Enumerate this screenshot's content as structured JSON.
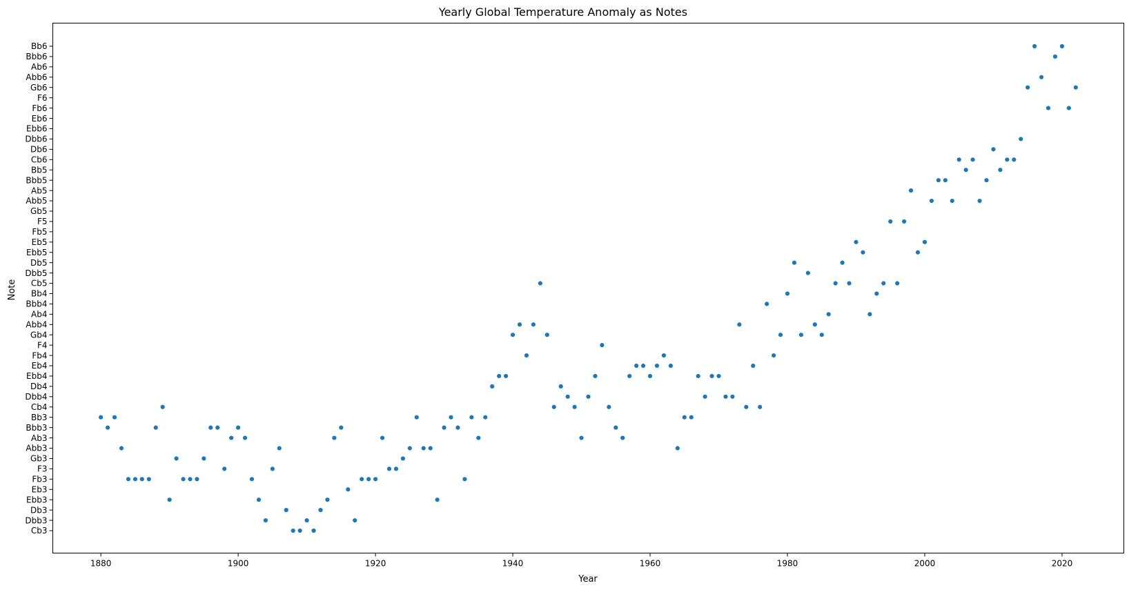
{
  "chart_data": {
    "type": "scatter",
    "title": "Yearly Global Temperature Anomaly as Notes",
    "xlabel": "Year",
    "ylabel": "Note",
    "xlim": [
      1873,
      2029
    ],
    "x_ticks": [
      1880,
      1900,
      1920,
      1940,
      1960,
      1980,
      2000,
      2020
    ],
    "y_categories": [
      "Cb3",
      "Dbb3",
      "Db3",
      "Ebb3",
      "Eb3",
      "Fb3",
      "F3",
      "Gb3",
      "Abb3",
      "Ab3",
      "Bbb3",
      "Bb3",
      "Cb4",
      "Dbb4",
      "Db4",
      "Ebb4",
      "Eb4",
      "Fb4",
      "F4",
      "Gb4",
      "Abb4",
      "Ab4",
      "Bbb4",
      "Bb4",
      "Cb5",
      "Dbb5",
      "Db5",
      "Ebb5",
      "Eb5",
      "Fb5",
      "F5",
      "Gb5",
      "Abb5",
      "Ab5",
      "Bbb5",
      "Bb5",
      "Cb6",
      "Db6",
      "Dbb6",
      "Ebb6",
      "Eb6",
      "Fb6",
      "F6",
      "Gb6",
      "Abb6",
      "Ab6",
      "Bbb6",
      "Bb6"
    ],
    "grid": false,
    "marker_color": "#1f77b4",
    "points": [
      [
        1880,
        "Bb3"
      ],
      [
        1881,
        "Bbb3"
      ],
      [
        1882,
        "Bb3"
      ],
      [
        1883,
        "Abb3"
      ],
      [
        1884,
        "Fb3"
      ],
      [
        1885,
        "Fb3"
      ],
      [
        1886,
        "Fb3"
      ],
      [
        1887,
        "Fb3"
      ],
      [
        1888,
        "Bbb3"
      ],
      [
        1889,
        "Cb4"
      ],
      [
        1890,
        "Ebb3"
      ],
      [
        1891,
        "Gb3"
      ],
      [
        1892,
        "Fb3"
      ],
      [
        1893,
        "Fb3"
      ],
      [
        1894,
        "Fb3"
      ],
      [
        1895,
        "Gb3"
      ],
      [
        1896,
        "Bbb3"
      ],
      [
        1897,
        "Bbb3"
      ],
      [
        1898,
        "F3"
      ],
      [
        1899,
        "Ab3"
      ],
      [
        1900,
        "Bbb3"
      ],
      [
        1901,
        "Ab3"
      ],
      [
        1902,
        "Fb3"
      ],
      [
        1903,
        "Ebb3"
      ],
      [
        1904,
        "Dbb3"
      ],
      [
        1905,
        "F3"
      ],
      [
        1906,
        "Abb3"
      ],
      [
        1907,
        "Db3"
      ],
      [
        1908,
        "Cb3"
      ],
      [
        1909,
        "Cb3"
      ],
      [
        1910,
        "Dbb3"
      ],
      [
        1911,
        "Cb3"
      ],
      [
        1912,
        "Db3"
      ],
      [
        1913,
        "Ebb3"
      ],
      [
        1914,
        "Ab3"
      ],
      [
        1915,
        "Bbb3"
      ],
      [
        1916,
        "Eb3"
      ],
      [
        1917,
        "Dbb3"
      ],
      [
        1918,
        "Fb3"
      ],
      [
        1919,
        "Fb3"
      ],
      [
        1920,
        "Fb3"
      ],
      [
        1921,
        "Ab3"
      ],
      [
        1922,
        "F3"
      ],
      [
        1923,
        "F3"
      ],
      [
        1924,
        "Gb3"
      ],
      [
        1925,
        "Abb3"
      ],
      [
        1926,
        "Bb3"
      ],
      [
        1927,
        "Abb3"
      ],
      [
        1928,
        "Abb3"
      ],
      [
        1929,
        "Ebb3"
      ],
      [
        1930,
        "Bbb3"
      ],
      [
        1931,
        "Bb3"
      ],
      [
        1932,
        "Bbb3"
      ],
      [
        1933,
        "Fb3"
      ],
      [
        1934,
        "Bb3"
      ],
      [
        1935,
        "Ab3"
      ],
      [
        1936,
        "Bb3"
      ],
      [
        1937,
        "Db4"
      ],
      [
        1938,
        "Ebb4"
      ],
      [
        1939,
        "Ebb4"
      ],
      [
        1940,
        "Gb4"
      ],
      [
        1941,
        "Abb4"
      ],
      [
        1942,
        "Fb4"
      ],
      [
        1943,
        "Abb4"
      ],
      [
        1944,
        "Cb5"
      ],
      [
        1945,
        "Gb4"
      ],
      [
        1946,
        "Cb4"
      ],
      [
        1947,
        "Db4"
      ],
      [
        1948,
        "Dbb4"
      ],
      [
        1949,
        "Cb4"
      ],
      [
        1950,
        "Ab3"
      ],
      [
        1951,
        "Dbb4"
      ],
      [
        1952,
        "Ebb4"
      ],
      [
        1953,
        "F4"
      ],
      [
        1954,
        "Cb4"
      ],
      [
        1955,
        "Bbb3"
      ],
      [
        1956,
        "Ab3"
      ],
      [
        1957,
        "Ebb4"
      ],
      [
        1958,
        "Eb4"
      ],
      [
        1959,
        "Eb4"
      ],
      [
        1960,
        "Ebb4"
      ],
      [
        1961,
        "Eb4"
      ],
      [
        1962,
        "Fb4"
      ],
      [
        1963,
        "Eb4"
      ],
      [
        1964,
        "Abb3"
      ],
      [
        1965,
        "Bb3"
      ],
      [
        1966,
        "Bb3"
      ],
      [
        1967,
        "Ebb4"
      ],
      [
        1968,
        "Dbb4"
      ],
      [
        1969,
        "Ebb4"
      ],
      [
        1970,
        "Ebb4"
      ],
      [
        1971,
        "Dbb4"
      ],
      [
        1972,
        "Dbb4"
      ],
      [
        1973,
        "Abb4"
      ],
      [
        1974,
        "Cb4"
      ],
      [
        1975,
        "Eb4"
      ],
      [
        1976,
        "Cb4"
      ],
      [
        1977,
        "Bbb4"
      ],
      [
        1978,
        "Fb4"
      ],
      [
        1979,
        "Gb4"
      ],
      [
        1980,
        "Bb4"
      ],
      [
        1981,
        "Db5"
      ],
      [
        1982,
        "Gb4"
      ],
      [
        1983,
        "Dbb5"
      ],
      [
        1984,
        "Abb4"
      ],
      [
        1985,
        "Gb4"
      ],
      [
        1986,
        "Ab4"
      ],
      [
        1987,
        "Cb5"
      ],
      [
        1988,
        "Db5"
      ],
      [
        1989,
        "Cb5"
      ],
      [
        1990,
        "Eb5"
      ],
      [
        1991,
        "Ebb5"
      ],
      [
        1992,
        "Ab4"
      ],
      [
        1993,
        "Bb4"
      ],
      [
        1994,
        "Cb5"
      ],
      [
        1995,
        "F5"
      ],
      [
        1996,
        "Cb5"
      ],
      [
        1997,
        "F5"
      ],
      [
        1998,
        "Ab5"
      ],
      [
        1999,
        "Ebb5"
      ],
      [
        2000,
        "Eb5"
      ],
      [
        2001,
        "Abb5"
      ],
      [
        2002,
        "Bbb5"
      ],
      [
        2003,
        "Bbb5"
      ],
      [
        2004,
        "Abb5"
      ],
      [
        2005,
        "Cb6"
      ],
      [
        2006,
        "Bb5"
      ],
      [
        2007,
        "Cb6"
      ],
      [
        2008,
        "Abb5"
      ],
      [
        2009,
        "Bbb5"
      ],
      [
        2010,
        "Db6"
      ],
      [
        2011,
        "Bb5"
      ],
      [
        2012,
        "Cb6"
      ],
      [
        2013,
        "Cb6"
      ],
      [
        2014,
        "Dbb6"
      ],
      [
        2015,
        "Gb6"
      ],
      [
        2016,
        "Bb6"
      ],
      [
        2017,
        "Abb6"
      ],
      [
        2018,
        "Fb6"
      ],
      [
        2019,
        "Bbb6"
      ],
      [
        2020,
        "Bb6"
      ],
      [
        2021,
        "Fb6"
      ],
      [
        2022,
        "Gb6"
      ]
    ]
  }
}
